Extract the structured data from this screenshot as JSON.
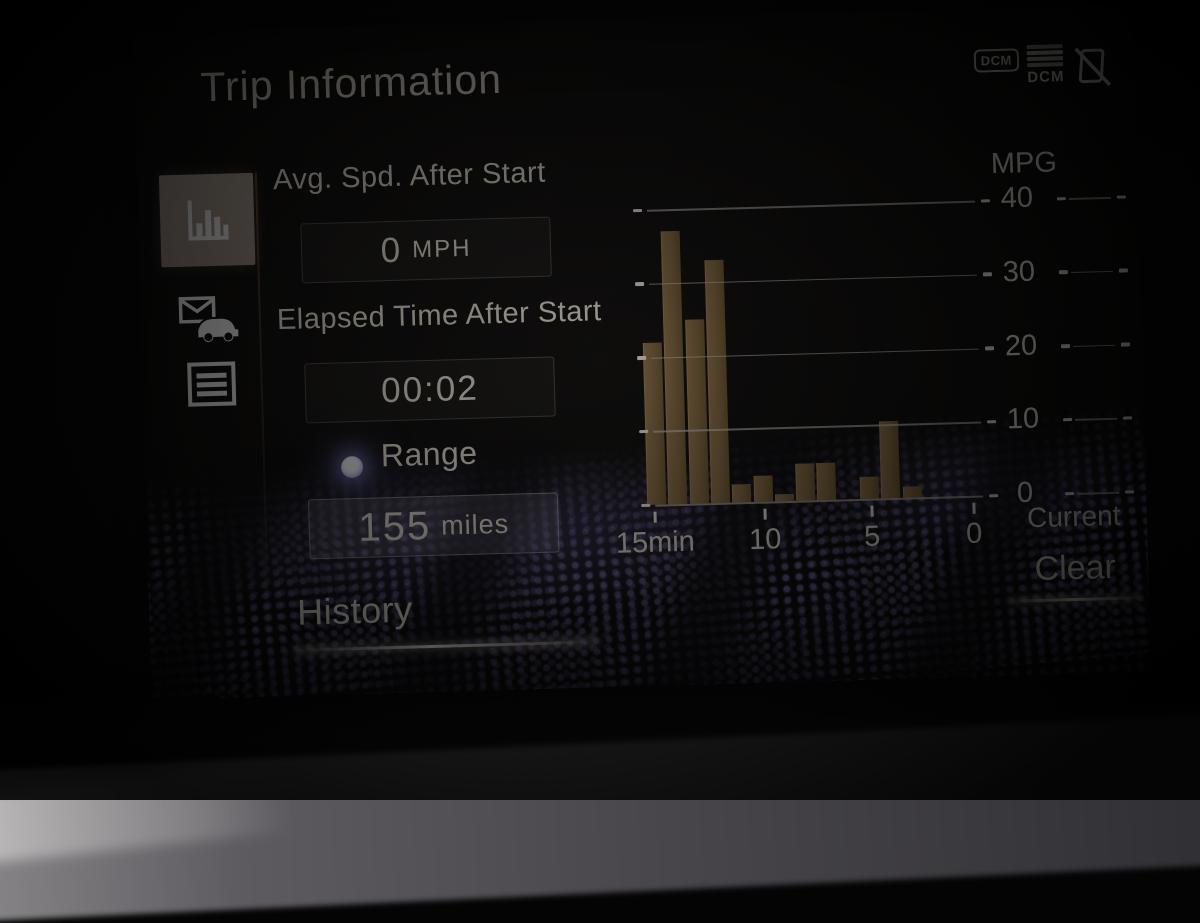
{
  "window": {
    "title": "Trip Information"
  },
  "status_bar": {
    "dcm_badge": "DCM",
    "dcm_signal_label": "DCM"
  },
  "sidebar": {
    "selected_bg": "#b0a295",
    "items": [
      {
        "id": "trip-graph",
        "icon": "bar-chart-icon",
        "selected": true
      },
      {
        "id": "vehicle-messages",
        "icon": "mail-car-icon",
        "selected": false
      },
      {
        "id": "trip-list",
        "icon": "list-icon",
        "selected": false
      }
    ]
  },
  "metrics": {
    "avg_speed": {
      "label": "Avg. Spd. After Start",
      "value": "0",
      "unit": "MPH"
    },
    "elapsed_time": {
      "label": "Elapsed Time After Start",
      "value": "00:02"
    },
    "range": {
      "label": "Range",
      "value": "155",
      "unit": "miles"
    }
  },
  "buttons": {
    "history": "History",
    "clear": "Clear"
  },
  "chart_data": {
    "type": "bar",
    "title": "MPG",
    "ylabel": "MPG",
    "ylim": [
      0,
      40
    ],
    "yticks": [
      40,
      30,
      20,
      10,
      0
    ],
    "xticks": [
      "15min",
      "10",
      "5",
      "0"
    ],
    "xlabel_right": "Current",
    "x_minutes_ago": [
      15,
      14,
      13,
      12,
      11,
      10,
      9,
      8,
      7,
      6,
      5,
      4,
      3,
      2,
      1
    ],
    "values": [
      22,
      37,
      25,
      33,
      2.5,
      3.5,
      1,
      5,
      5,
      0,
      3,
      10.5,
      1.5,
      0,
      0
    ],
    "bar_color": "#8a6f45",
    "gridline_color": "#c3beb4",
    "grid": true
  },
  "colors": {
    "accent_text": "#ece5d6",
    "pattern_purple": "#8d82c8",
    "dash_gray": "#5d5b60"
  }
}
